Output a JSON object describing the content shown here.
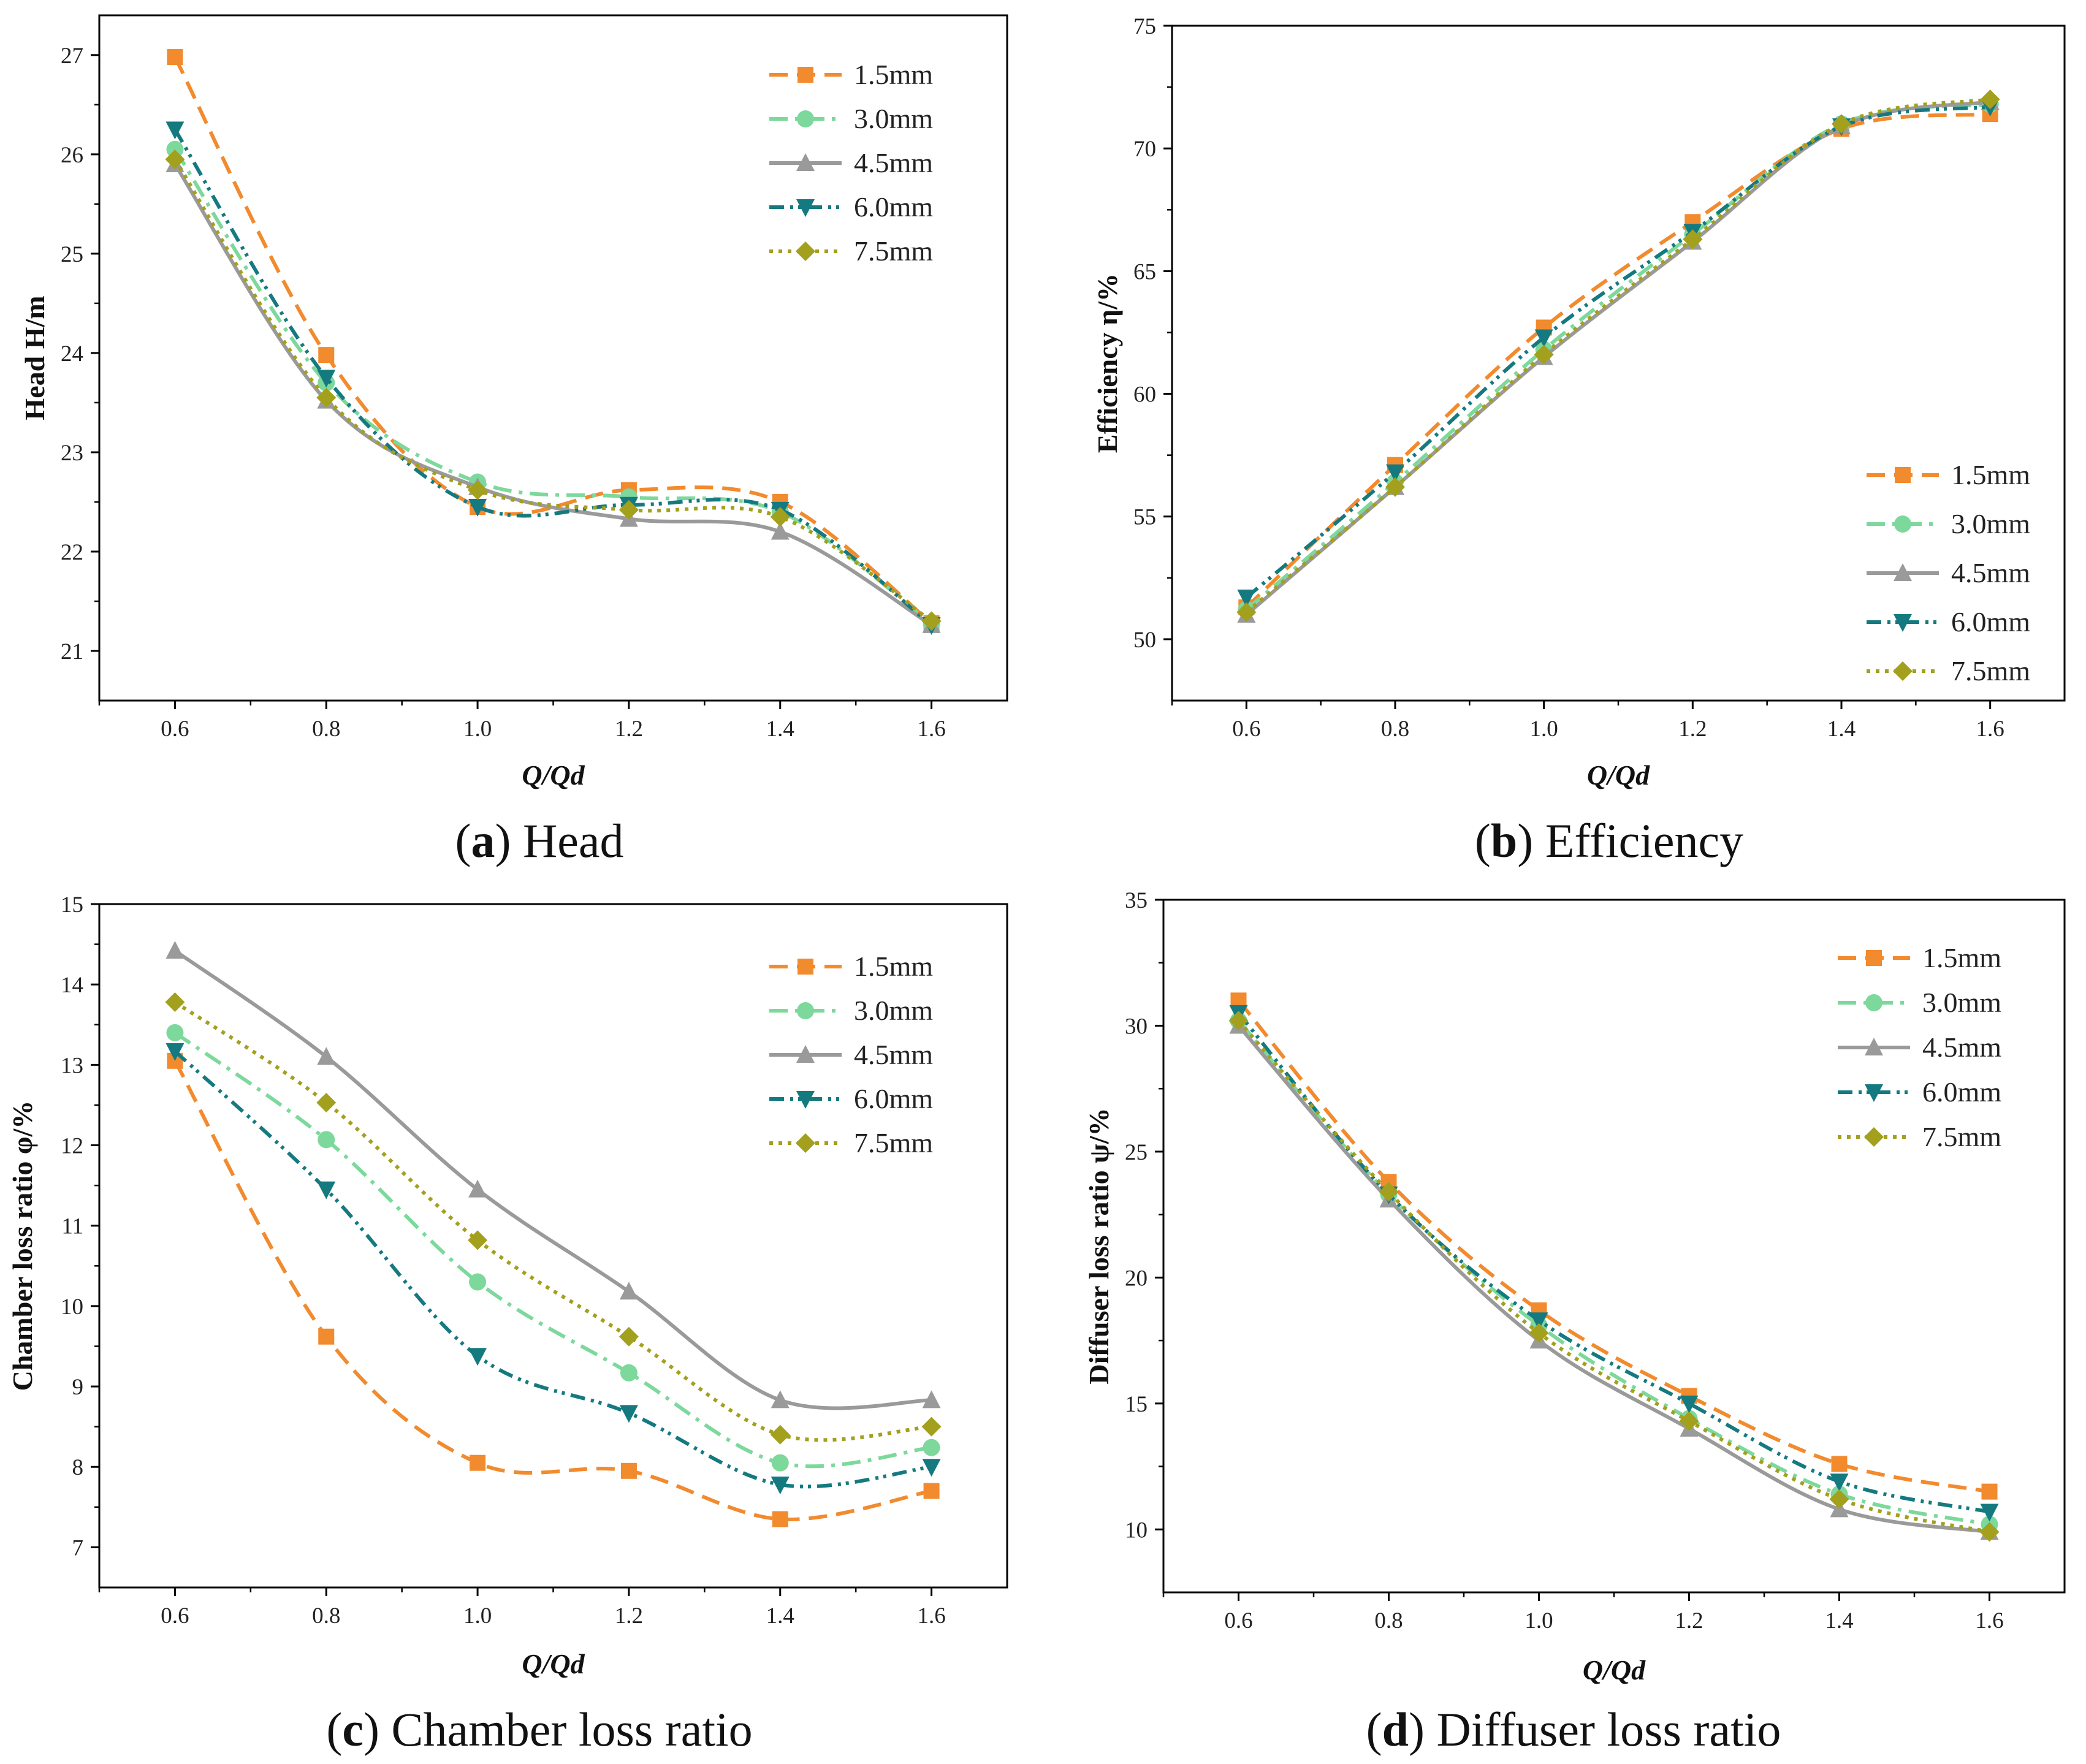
{
  "chart_data": [
    {
      "type": "line",
      "caption_letter": "a",
      "caption_text": "Head",
      "xlabel": "Q/Qd",
      "ylabel": "Head H/m",
      "x": [
        0.6,
        0.8,
        1.0,
        1.2,
        1.4,
        1.6
      ],
      "xlim": [
        0.5,
        1.7
      ],
      "ylim": [
        20.5,
        27.4
      ],
      "xticks": [
        0.6,
        0.8,
        1.0,
        1.2,
        1.4,
        1.6
      ],
      "xtick_labels": [
        "0.6",
        "0.8",
        "1.0",
        "1.2",
        "1.4",
        "1.6"
      ],
      "yticks": [
        21,
        22,
        23,
        24,
        25,
        26,
        27
      ],
      "ytick_labels": [
        "21",
        "22",
        "23",
        "24",
        "25",
        "26",
        "27"
      ],
      "legend_position": "top-right",
      "series": [
        {
          "name": "1.5mm",
          "color": "#F28A2E",
          "marker": "square",
          "dash": "dash",
          "values": [
            26.98,
            23.98,
            22.45,
            22.62,
            22.5,
            21.28
          ]
        },
        {
          "name": "3.0mm",
          "color": "#7DD89C",
          "marker": "circle",
          "dash": "dashdot",
          "values": [
            26.05,
            23.7,
            22.7,
            22.55,
            22.4,
            21.27
          ]
        },
        {
          "name": "4.5mm",
          "color": "#9A9A9A",
          "marker": "triangle-up",
          "dash": "solid",
          "values": [
            25.9,
            23.52,
            22.65,
            22.33,
            22.2,
            21.26
          ]
        },
        {
          "name": "6.0mm",
          "color": "#157A80",
          "marker": "triangle-down",
          "dash": "dashdotdot",
          "values": [
            26.25,
            23.75,
            22.45,
            22.47,
            22.42,
            21.26
          ]
        },
        {
          "name": "7.5mm",
          "color": "#A3A01E",
          "marker": "diamond",
          "dash": "dot",
          "values": [
            25.95,
            23.55,
            22.62,
            22.42,
            22.35,
            21.3
          ]
        }
      ]
    },
    {
      "type": "line",
      "caption_letter": "b",
      "caption_text": "Efficiency",
      "xlabel": "Q/Qd",
      "ylabel": "Efficiency η/%",
      "x": [
        0.6,
        0.8,
        1.0,
        1.2,
        1.4,
        1.6
      ],
      "xlim": [
        0.5,
        1.7
      ],
      "ylim": [
        47.5,
        75
      ],
      "xticks": [
        0.6,
        0.8,
        1.0,
        1.2,
        1.4,
        1.6
      ],
      "xtick_labels": [
        "0.6",
        "0.8",
        "1.0",
        "1.2",
        "1.4",
        "1.6"
      ],
      "yticks": [
        50,
        55,
        60,
        65,
        70,
        75
      ],
      "ytick_labels": [
        "50",
        "55",
        "60",
        "65",
        "70",
        "75"
      ],
      "legend_position": "bottom-right",
      "series": [
        {
          "name": "1.5mm",
          "color": "#F28A2E",
          "marker": "square",
          "dash": "dash",
          "values": [
            51.3,
            57.1,
            62.7,
            67.0,
            70.8,
            71.4
          ]
        },
        {
          "name": "3.0mm",
          "color": "#7DD89C",
          "marker": "circle",
          "dash": "dashdot",
          "values": [
            51.2,
            56.4,
            61.8,
            66.5,
            71.0,
            71.8
          ]
        },
        {
          "name": "4.5mm",
          "color": "#9A9A9A",
          "marker": "triangle-up",
          "dash": "solid",
          "values": [
            51.0,
            56.2,
            61.5,
            66.2,
            70.9,
            71.9
          ]
        },
        {
          "name": "6.0mm",
          "color": "#157A80",
          "marker": "triangle-down",
          "dash": "dashdotdot",
          "values": [
            51.7,
            56.8,
            62.3,
            66.6,
            70.9,
            71.7
          ]
        },
        {
          "name": "7.5mm",
          "color": "#A3A01E",
          "marker": "diamond",
          "dash": "dot",
          "values": [
            51.1,
            56.2,
            61.6,
            66.3,
            71.0,
            72.0
          ]
        }
      ]
    },
    {
      "type": "line",
      "caption_letter": "c",
      "caption_text": "Chamber loss ratio",
      "xlabel": "Q/Qd",
      "ylabel": "Chamber loss ratio φ/%",
      "x": [
        0.6,
        0.8,
        1.0,
        1.2,
        1.4,
        1.6
      ],
      "xlim": [
        0.5,
        1.7
      ],
      "ylim": [
        6.5,
        15
      ],
      "xticks": [
        0.6,
        0.8,
        1.0,
        1.2,
        1.4,
        1.6
      ],
      "xtick_labels": [
        "0.6",
        "0.8",
        "1.0",
        "1.2",
        "1.4",
        "1.6"
      ],
      "yticks": [
        7,
        8,
        9,
        10,
        11,
        12,
        13,
        14,
        15
      ],
      "ytick_labels": [
        "7",
        "8",
        "9",
        "10",
        "11",
        "12",
        "13",
        "14",
        "15"
      ],
      "legend_position": "top-right",
      "series": [
        {
          "name": "1.5mm",
          "color": "#F28A2E",
          "marker": "square",
          "dash": "dash",
          "values": [
            13.05,
            9.62,
            8.05,
            7.95,
            7.35,
            7.7
          ]
        },
        {
          "name": "3.0mm",
          "color": "#7DD89C",
          "marker": "circle",
          "dash": "dashdot",
          "values": [
            13.4,
            12.07,
            10.3,
            9.17,
            8.05,
            8.24
          ]
        },
        {
          "name": "4.5mm",
          "color": "#9A9A9A",
          "marker": "triangle-up",
          "dash": "solid",
          "values": [
            14.42,
            13.1,
            11.45,
            10.18,
            8.83,
            8.83
          ]
        },
        {
          "name": "6.0mm",
          "color": "#157A80",
          "marker": "triangle-down",
          "dash": "dashdotdot",
          "values": [
            13.17,
            11.45,
            9.38,
            8.67,
            7.78,
            8.0
          ]
        },
        {
          "name": "7.5mm",
          "color": "#A3A01E",
          "marker": "diamond",
          "dash": "dot",
          "values": [
            13.78,
            12.53,
            10.82,
            9.62,
            8.4,
            8.5
          ]
        }
      ]
    },
    {
      "type": "line",
      "caption_letter": "d",
      "caption_text": "Diffuser loss ratio",
      "xlabel": "Q/Qd",
      "ylabel": "Diffuser loss ratio ψ/%",
      "x": [
        0.6,
        0.8,
        1.0,
        1.2,
        1.4,
        1.6
      ],
      "xlim": [
        0.5,
        1.7
      ],
      "ylim": [
        7.5,
        35
      ],
      "xticks": [
        0.6,
        0.8,
        1.0,
        1.2,
        1.4,
        1.6
      ],
      "xtick_labels": [
        "0.6",
        "0.8",
        "1.0",
        "1.2",
        "1.4",
        "1.6"
      ],
      "yticks": [
        10,
        15,
        20,
        25,
        30,
        35
      ],
      "ytick_labels": [
        "10",
        "15",
        "20",
        "25",
        "30",
        "35"
      ],
      "legend_position": "top-right",
      "series": [
        {
          "name": "1.5mm",
          "color": "#F28A2E",
          "marker": "square",
          "dash": "dash",
          "values": [
            31.0,
            23.8,
            18.7,
            15.3,
            12.6,
            11.5
          ]
        },
        {
          "name": "3.0mm",
          "color": "#7DD89C",
          "marker": "circle",
          "dash": "dashdot",
          "values": [
            30.2,
            23.3,
            18.1,
            14.4,
            11.4,
            10.2
          ]
        },
        {
          "name": "4.5mm",
          "color": "#9A9A9A",
          "marker": "triangle-up",
          "dash": "solid",
          "values": [
            30.0,
            23.1,
            17.5,
            14.0,
            10.8,
            9.9
          ]
        },
        {
          "name": "6.0mm",
          "color": "#157A80",
          "marker": "triangle-down",
          "dash": "dashdotdot",
          "values": [
            30.5,
            23.3,
            18.3,
            15.0,
            11.9,
            10.7
          ]
        },
        {
          "name": "7.5mm",
          "color": "#A3A01E",
          "marker": "diamond",
          "dash": "dot",
          "values": [
            30.2,
            23.4,
            17.8,
            14.3,
            11.2,
            9.9
          ]
        }
      ]
    }
  ]
}
